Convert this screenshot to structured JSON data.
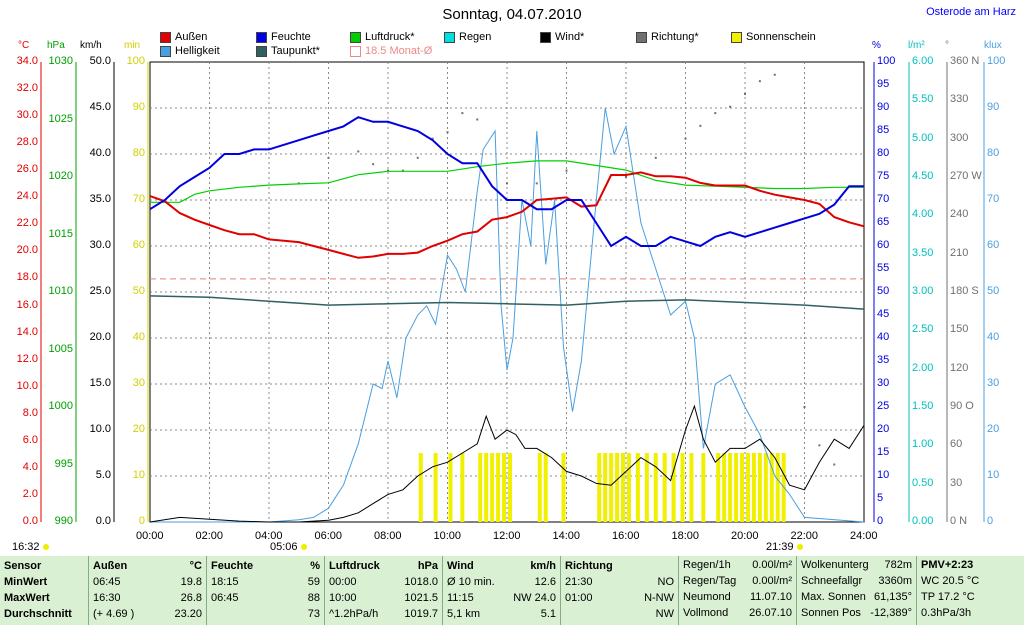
{
  "title": "Sonntag, 04.07.2010",
  "location": "Osterode am Harz",
  "legend": {
    "aussen": "Außen",
    "feuchte": "Feuchte",
    "luftdruck": "Luftdruck*",
    "regen": "Regen",
    "wind": "Wind*",
    "richtung": "Richtung*",
    "sonnenschein": "Sonnenschein",
    "helligkeit": "Helligkeit",
    "taupunkt": "Taupunkt*",
    "monat": "18.5 Monat-Ø"
  },
  "colors": {
    "aussen": "#e00000",
    "feuchte": "#0000e0",
    "luftdruck": "#00d000",
    "regen": "#00e0e0",
    "wind": "#000000",
    "richtung": "#707070",
    "sonnenschein": "#f0f000",
    "helligkeit": "#4a9fe0",
    "taupunkt": "#306060",
    "monat": "#e08080"
  },
  "axes": {
    "celsius": {
      "unit": "°C",
      "ticks": [
        "0.0",
        "2.0",
        "4.0",
        "6.0",
        "8.0",
        "10.0",
        "12.0",
        "14.0",
        "16.0",
        "18.0",
        "20.0",
        "22.0",
        "24.0",
        "26.0",
        "28.0",
        "30.0",
        "32.0",
        "34.0"
      ]
    },
    "hpa": {
      "unit": "hPa",
      "ticks": [
        "990",
        "995",
        "1000",
        "1005",
        "1010",
        "1015",
        "1020",
        "1025",
        "1030"
      ]
    },
    "kmh": {
      "unit": "km/h",
      "ticks": [
        "0.0",
        "5.0",
        "10.0",
        "15.0",
        "20.0",
        "25.0",
        "30.0",
        "35.0",
        "40.0",
        "45.0",
        "50.0"
      ]
    },
    "min": {
      "unit": "min",
      "ticks": [
        "0",
        "10",
        "20",
        "30",
        "40",
        "50",
        "60",
        "70",
        "80",
        "90",
        "100"
      ]
    },
    "pct": {
      "unit": "%",
      "ticks": [
        "0",
        "5",
        "10",
        "15",
        "20",
        "25",
        "30",
        "35",
        "40",
        "45",
        "50",
        "55",
        "60",
        "65",
        "70",
        "75",
        "80",
        "85",
        "90",
        "95",
        "100"
      ]
    },
    "lm2": {
      "unit": "l/m²",
      "ticks": [
        "0.00",
        "0.50",
        "1.00",
        "1.50",
        "2.00",
        "2.50",
        "3.00",
        "3.50",
        "4.00",
        "4.50",
        "5.00",
        "5.50",
        "6.00"
      ]
    },
    "deg": {
      "unit": "°",
      "ticks": [
        "0 N",
        "30",
        "60",
        "90 O",
        "120",
        "150",
        "180 S",
        "210",
        "240",
        "270 W",
        "300",
        "330",
        "360 N"
      ]
    },
    "klux": {
      "unit": "klux",
      "ticks": [
        "0",
        "10",
        "20",
        "30",
        "40",
        "50",
        "60",
        "70",
        "80",
        "90",
        "100"
      ]
    },
    "time": {
      "ticks": [
        "00:00",
        "02:00",
        "04:00",
        "06:00",
        "08:00",
        "10:00",
        "12:00",
        "14:00",
        "16:00",
        "18:00",
        "20:00",
        "22:00",
        "24:00"
      ]
    }
  },
  "markers": {
    "left": "16:32",
    "sunrise": "05:06",
    "sunset": "21:39"
  },
  "chart_data": {
    "type": "line",
    "title": "Sonntag, 04.07.2010",
    "x_unit": "hours",
    "xlim": [
      0,
      24
    ],
    "series": [
      {
        "name": "Außen",
        "unit": "°C",
        "ylim": [
          0,
          35
        ],
        "x": [
          0,
          0.5,
          1,
          1.5,
          2,
          2.5,
          3,
          3.5,
          4,
          4.5,
          5,
          5.5,
          6,
          6.5,
          7,
          7.5,
          8,
          8.5,
          9,
          9.5,
          10,
          10.5,
          11,
          11.5,
          12,
          12.5,
          13,
          13.5,
          14,
          14.5,
          15,
          15.5,
          16,
          16.5,
          17,
          17.5,
          18,
          18.5,
          19,
          19.5,
          20,
          20.5,
          21,
          21.5,
          22,
          22.5,
          23,
          23.5,
          24
        ],
        "values": [
          24.8,
          24.4,
          23.5,
          23.0,
          22.6,
          22.2,
          21.9,
          21.9,
          21.5,
          21.4,
          21.3,
          21.0,
          20.7,
          20.4,
          20.1,
          20.2,
          20.4,
          20.4,
          20.5,
          21.0,
          21.4,
          21.9,
          22.1,
          23.0,
          23.2,
          23.6,
          24.5,
          24.6,
          24.7,
          24.0,
          24.1,
          26.4,
          26.4,
          26.6,
          26.3,
          26.3,
          26.2,
          25.8,
          25.6,
          25.6,
          25.6,
          25.2,
          24.9,
          24.7,
          24.5,
          24.2,
          23.2,
          22.8,
          22.5
        ]
      },
      {
        "name": "Feuchte",
        "unit": "%",
        "ylim": [
          0,
          100
        ],
        "x": [
          0,
          0.5,
          1,
          1.5,
          2,
          2.5,
          3,
          3.5,
          4,
          4.5,
          5,
          5.5,
          6,
          6.5,
          7,
          7.5,
          8,
          8.5,
          9,
          9.5,
          10,
          10.5,
          11,
          11.5,
          12,
          12.5,
          13,
          13.5,
          14,
          14.5,
          15,
          15.5,
          16,
          16.5,
          17,
          17.5,
          18,
          18.5,
          19,
          19.5,
          20,
          20.5,
          21,
          21.5,
          22,
          22.5,
          23,
          23.5,
          24
        ],
        "values": [
          68,
          70,
          73,
          75,
          77,
          80,
          80,
          81,
          81,
          82,
          83,
          84,
          85,
          86,
          88,
          87,
          87,
          86,
          85,
          83,
          80,
          78,
          78,
          73,
          70,
          70,
          68,
          68,
          70,
          70,
          65,
          60,
          62,
          60,
          60,
          62,
          61,
          60,
          62,
          63,
          62,
          63,
          64,
          65,
          66,
          67,
          69,
          73,
          73
        ]
      },
      {
        "name": "Luftdruck",
        "unit": "hPa",
        "ylim": [
          990,
          1030
        ],
        "x": [
          0,
          1,
          1.5,
          2,
          3,
          4,
          5,
          6,
          7,
          8,
          9,
          10,
          11,
          12,
          13,
          14,
          15,
          16,
          17,
          18,
          19,
          20,
          21,
          22,
          23,
          24
        ],
        "values": [
          1017.8,
          1017.8,
          1018.5,
          1018.8,
          1019.1,
          1019.3,
          1019.4,
          1019.5,
          1020.2,
          1020.5,
          1020.5,
          1020.5,
          1020.9,
          1021.2,
          1021.4,
          1021.4,
          1021.0,
          1020.6,
          1019.7,
          1019.3,
          1019.2,
          1019.1,
          1019.0,
          1019.0,
          1019.1,
          1019.1
        ]
      },
      {
        "name": "Taupunkt",
        "unit": "°C",
        "ylim": [
          0,
          35
        ],
        "x": [
          0,
          2,
          4,
          6,
          8,
          10,
          12,
          14,
          16,
          18,
          20,
          22,
          24
        ],
        "values": [
          17.2,
          17.1,
          16.8,
          16.5,
          16.6,
          16.7,
          16.6,
          16.5,
          16.8,
          16.9,
          16.7,
          16.5,
          16.2
        ]
      },
      {
        "name": "18.5 Monat-Ø",
        "unit": "°C",
        "ylim": [
          0,
          35
        ],
        "x": [
          0,
          24
        ],
        "values": [
          18.5,
          18.5
        ]
      },
      {
        "name": "Helligkeit",
        "unit": "klux",
        "ylim": [
          0,
          100
        ],
        "x": [
          0,
          4,
          5,
          5.5,
          6,
          6.5,
          7,
          7.5,
          7.8,
          8,
          8.3,
          8.6,
          9,
          9.3,
          9.6,
          10,
          10.3,
          10.6,
          11,
          11.2,
          11.6,
          11.8,
          12,
          12.2,
          12.5,
          12.8,
          13,
          13.3,
          13.6,
          13.9,
          14.2,
          14.5,
          15,
          15.3,
          15.6,
          16,
          16.5,
          17,
          17.5,
          18,
          18.3,
          18.6,
          19,
          19.5,
          20,
          20.5,
          21,
          21.5,
          22,
          24
        ],
        "values": [
          0,
          0,
          0.5,
          1,
          3,
          8,
          17,
          30,
          29,
          35,
          27,
          40,
          45,
          47,
          43,
          58,
          55,
          50,
          72,
          81,
          85,
          47,
          33,
          40,
          70,
          60,
          85,
          56,
          70,
          38,
          24,
          35,
          70,
          90,
          80,
          86,
          65,
          55,
          45,
          48,
          40,
          16,
          30,
          32,
          25,
          19,
          10,
          6,
          1,
          0
        ]
      },
      {
        "name": "Wind",
        "unit": "km/h",
        "ylim": [
          0,
          50
        ],
        "x": [
          0,
          1,
          2,
          3,
          4,
          5,
          6,
          6.5,
          7,
          7.5,
          8,
          8.5,
          9,
          9.5,
          10,
          10.5,
          11,
          11.3,
          11.6,
          12,
          12.3,
          12.6,
          13,
          13.5,
          14,
          14.5,
          15,
          15.5,
          16,
          16.5,
          17,
          17.5,
          18,
          18.3,
          18.6,
          19,
          19.5,
          20,
          20.5,
          21,
          21.5,
          22,
          22.5,
          23,
          23.5,
          24
        ],
        "values": [
          0,
          0.5,
          0.3,
          0.1,
          0,
          0,
          0.2,
          0.5,
          1,
          2,
          3,
          3.5,
          5,
          6,
          6.5,
          7.5,
          8.5,
          11.5,
          9,
          10,
          9.5,
          8,
          8,
          7,
          5.5,
          5,
          4.2,
          4,
          5.5,
          7,
          6,
          4.5,
          10,
          12.6,
          9,
          6.5,
          8,
          8,
          9,
          7,
          4,
          3.5,
          6.5,
          9,
          8,
          10.5
        ]
      },
      {
        "name": "Sonnenschein",
        "unit": "min",
        "ylim": [
          0,
          100
        ],
        "x": [
          9.1,
          9.6,
          10.1,
          10.5,
          11.1,
          11.3,
          11.5,
          11.7,
          11.9,
          12.1,
          13.1,
          13.3,
          13.9,
          15.1,
          15.3,
          15.5,
          15.7,
          15.9,
          16.1,
          16.4,
          16.7,
          17.0,
          17.3,
          17.6,
          17.9,
          18.2,
          18.6,
          19.1,
          19.3,
          19.5,
          19.7,
          19.9,
          20.1,
          20.3,
          20.5,
          20.7,
          20.9,
          21.1,
          21.3
        ],
        "values": [
          15,
          15,
          15,
          15,
          15,
          15,
          15,
          15,
          15,
          15,
          15,
          15,
          15,
          15,
          15,
          15,
          15,
          15,
          15,
          15,
          15,
          15,
          15,
          15,
          15,
          15,
          15,
          15,
          15,
          15,
          15,
          15,
          15,
          15,
          15,
          15,
          15,
          15,
          15
        ]
      }
    ],
    "richtung_deg": {
      "x": [
        5,
        6,
        7,
        7.5,
        8,
        8.5,
        9,
        9.5,
        10,
        10.5,
        11,
        12,
        13,
        14,
        16,
        17,
        18,
        18.5,
        19,
        19.5,
        20,
        20.5,
        21,
        22,
        22.5,
        23
      ],
      "values": [
        265,
        285,
        290,
        280,
        275,
        275,
        285,
        300,
        305,
        320,
        315,
        265,
        265,
        275,
        270,
        285,
        300,
        310,
        320,
        325,
        335,
        345,
        350,
        90,
        60,
        45
      ]
    }
  },
  "table": {
    "sensor": {
      "header": "Sensor",
      "rows": [
        "MinWert",
        "MaxWert",
        "Durchschnitt"
      ]
    },
    "aussen": {
      "header": "Außen",
      "unit": "°C",
      "rows": [
        [
          "06:45",
          "19.8"
        ],
        [
          "16:30",
          "26.8"
        ],
        [
          "(+ 4.69 )",
          "23.20"
        ]
      ]
    },
    "feuchte": {
      "header": "Feuchte",
      "unit": "%",
      "rows": [
        [
          "18:15",
          "59"
        ],
        [
          "06:45",
          "88"
        ],
        [
          "",
          "73"
        ]
      ]
    },
    "luftdruck": {
      "header": "Luftdruck",
      "unit": "hPa",
      "rows": [
        [
          "00:00",
          "1018.0"
        ],
        [
          "10:00",
          "1021.5"
        ],
        [
          "^1.2hPa/h",
          "1019.7"
        ]
      ]
    },
    "wind": {
      "header": "Wind",
      "unit": "km/h",
      "rows": [
        [
          "Ø 10 min.",
          "12.6"
        ],
        [
          "11:15",
          "NW 24.0"
        ],
        [
          "5,1 km",
          "5.1"
        ]
      ]
    },
    "richtung": {
      "header": "Richtung",
      "rows": [
        [
          "21:30",
          "NO"
        ],
        [
          "01:00",
          "N-NW"
        ],
        [
          "",
          "NW"
        ]
      ]
    },
    "regen": {
      "rows": [
        [
          "Regen/1h",
          "0.00l/m²"
        ],
        [
          "Regen/Tag",
          "0.00l/m²"
        ],
        [
          "Neumond",
          "11.07.10"
        ],
        [
          "Vollmond",
          "26.07.10"
        ]
      ]
    },
    "wolken": {
      "rows": [
        [
          "Wolkenunterg",
          "782m"
        ],
        [
          "Schneefallgr",
          "3360m"
        ],
        [
          "Max. Sonnen",
          "61,135°"
        ],
        [
          "Sonnen Pos",
          "-12,389°"
        ]
      ]
    },
    "pmv": {
      "rows": [
        "PMV+2:23",
        "WC 20.5 °C",
        "TP 17.2 °C",
        "0.3hPa/3h"
      ]
    }
  }
}
